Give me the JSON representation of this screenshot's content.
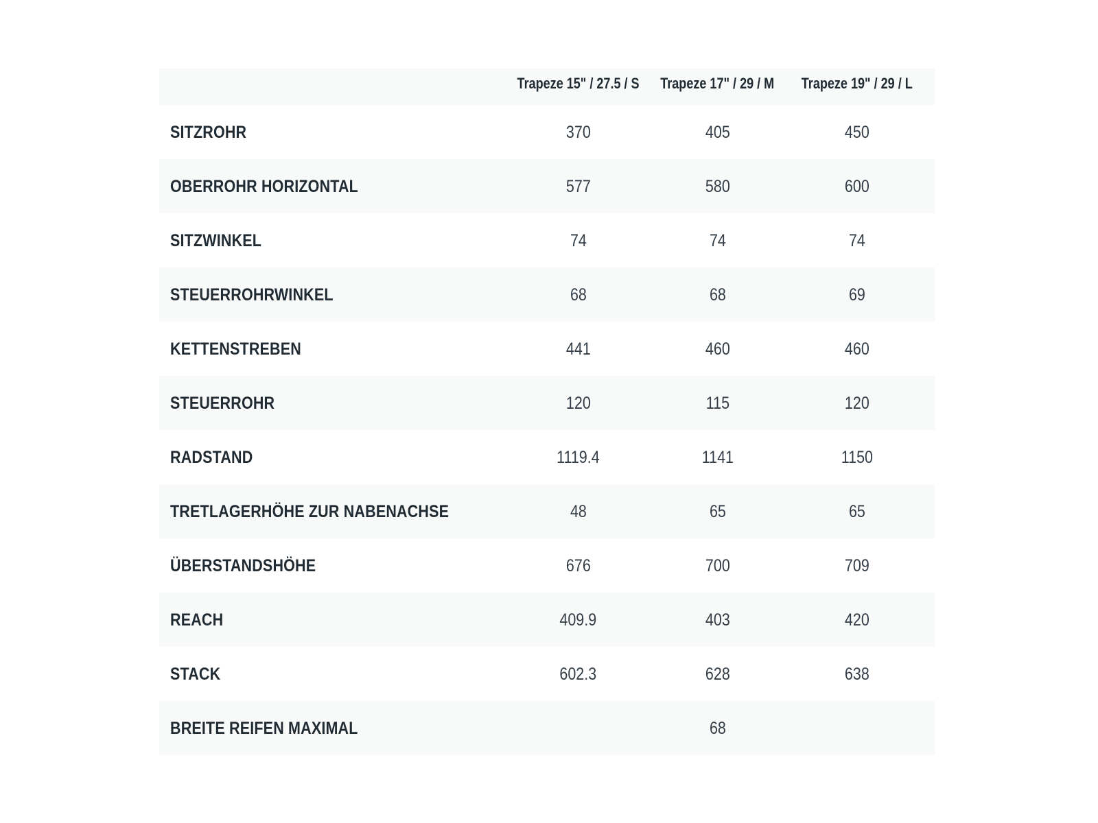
{
  "table": {
    "columns": [
      "Trapeze 15\" / 27.5 / S",
      "Trapeze 17\" / 29 / M",
      "Trapeze 19\" / 29 / L"
    ],
    "rows": [
      {
        "label": "SITZROHR",
        "values": [
          "370",
          "405",
          "450"
        ]
      },
      {
        "label": "OBERROHR HORIZONTAL",
        "values": [
          "577",
          "580",
          "600"
        ]
      },
      {
        "label": "SITZWINKEL",
        "values": [
          "74",
          "74",
          "74"
        ]
      },
      {
        "label": "STEUERROHRWINKEL",
        "values": [
          "68",
          "68",
          "69"
        ]
      },
      {
        "label": "KETTENSTREBEN",
        "values": [
          "441",
          "460",
          "460"
        ]
      },
      {
        "label": "STEUERROHR",
        "values": [
          "120",
          "115",
          "120"
        ]
      },
      {
        "label": "RADSTAND",
        "values": [
          "1119.4",
          "1141",
          "1150"
        ]
      },
      {
        "label": "TRETLAGERHÖHE ZUR NABENACHSE",
        "values": [
          "48",
          "65",
          "65"
        ]
      },
      {
        "label": "ÜBERSTANDSHÖHE",
        "values": [
          "676",
          "700",
          "709"
        ]
      },
      {
        "label": "REACH",
        "values": [
          "409.9",
          "403",
          "420"
        ]
      },
      {
        "label": "STACK",
        "values": [
          "602.3",
          "628",
          "638"
        ]
      },
      {
        "label": "BREITE REIFEN MAXIMAL",
        "values": [
          "",
          "68",
          ""
        ]
      }
    ]
  },
  "colors": {
    "page_bg": "#ffffff",
    "row_stripe_bg": "#f8f9f9",
    "label_text": "#202b33",
    "value_text": "#323c46"
  }
}
